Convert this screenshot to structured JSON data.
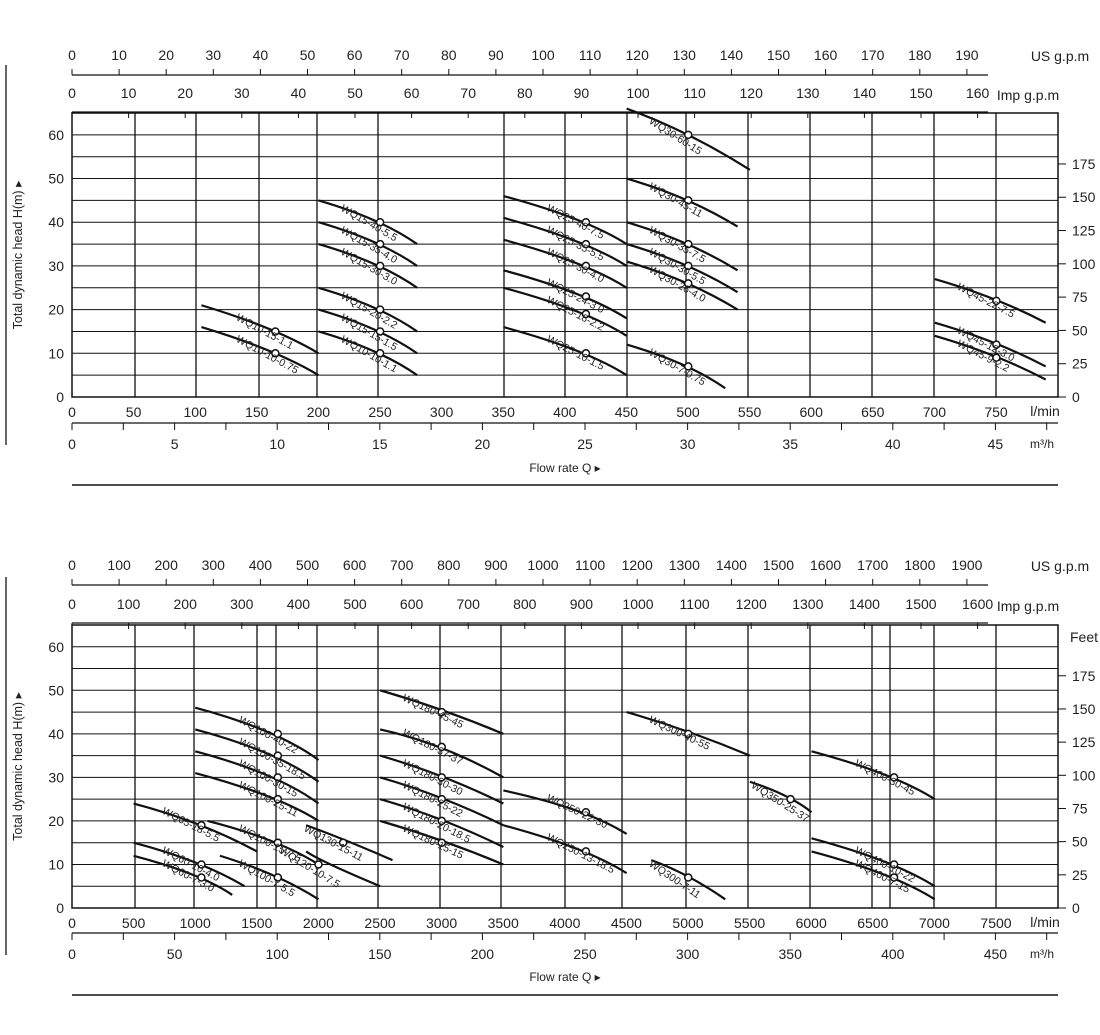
{
  "chart_data": [
    {
      "type": "line",
      "xlabel": "Flow rate Q ▸",
      "ylabel": "Total dynamic head H(m) ▸",
      "top_axis_1": {
        "unit": "US g.p.m",
        "ticks": [
          "0",
          "10",
          "20",
          "30",
          "40",
          "50",
          "60",
          "70",
          "80",
          "90",
          "100",
          "110",
          "120",
          "130",
          "140",
          "150",
          "160",
          "170",
          "180",
          "190"
        ]
      },
      "top_axis_2": {
        "unit": "Imp g.p.m",
        "ticks": [
          "0",
          "10",
          "20",
          "30",
          "40",
          "50",
          "60",
          "70",
          "80",
          "90",
          "100",
          "110",
          "120",
          "130",
          "140",
          "150",
          "160"
        ]
      },
      "bottom_axis_1": {
        "unit": "l/min",
        "ticks": [
          "0",
          "50",
          "100",
          "150",
          "200",
          "250",
          "300",
          "350",
          "400",
          "450",
          "500",
          "550",
          "600",
          "650",
          "700",
          "750"
        ]
      },
      "bottom_axis_2": {
        "unit": "m³/h",
        "ticks": [
          "0",
          "5",
          "10",
          "15",
          "20",
          "25",
          "30",
          "35",
          "40",
          "45"
        ]
      },
      "left_ticks": [
        "0",
        "10",
        "20",
        "30",
        "40",
        "50",
        "60"
      ],
      "right_axis_label": "",
      "right_ticks": [
        "0",
        "25",
        "50",
        "75",
        "100",
        "125",
        "150",
        "175"
      ],
      "xlim_lmin": [
        0,
        800
      ],
      "ylim": [
        0,
        65
      ],
      "right_feet_per_m": 3.2808,
      "series": [
        {
          "name": "WQ10-15-1.1",
          "x": [
            105,
            165,
            200
          ],
          "y": [
            21,
            15,
            10
          ]
        },
        {
          "name": "WQ10-10-0.75",
          "x": [
            105,
            165,
            200
          ],
          "y": [
            16,
            10,
            5
          ]
        },
        {
          "name": "WQ15-40-5.5",
          "x": [
            200,
            250,
            280
          ],
          "y": [
            45,
            40,
            35
          ]
        },
        {
          "name": "WQ15-35-4.0",
          "x": [
            200,
            250,
            280
          ],
          "y": [
            40,
            35,
            30
          ]
        },
        {
          "name": "WQ15-30-3.0",
          "x": [
            200,
            250,
            280
          ],
          "y": [
            35,
            30,
            25
          ]
        },
        {
          "name": "WQ15-20-2.2",
          "x": [
            200,
            250,
            280
          ],
          "y": [
            25,
            20,
            15
          ]
        },
        {
          "name": "WQ15-15-1.5",
          "x": [
            200,
            250,
            280
          ],
          "y": [
            20,
            15,
            10
          ]
        },
        {
          "name": "WQ10-10-1.1",
          "x": [
            200,
            250,
            280
          ],
          "y": [
            15,
            10,
            5
          ]
        },
        {
          "name": "WQ25-40-7.5",
          "x": [
            350,
            417,
            450
          ],
          "y": [
            46,
            40,
            35
          ]
        },
        {
          "name": "WQ25-35-5.5",
          "x": [
            350,
            417,
            450
          ],
          "y": [
            41,
            35,
            30
          ]
        },
        {
          "name": "WQ25-30-4.0",
          "x": [
            350,
            417,
            450
          ],
          "y": [
            36,
            30,
            25
          ]
        },
        {
          "name": "WQ25-24-3.0",
          "x": [
            350,
            417,
            450
          ],
          "y": [
            29,
            23,
            18
          ]
        },
        {
          "name": "WQ25-18-2.2",
          "x": [
            350,
            417,
            450
          ],
          "y": [
            25,
            19,
            14
          ]
        },
        {
          "name": "WQ25-10-1.5",
          "x": [
            350,
            417,
            450
          ],
          "y": [
            16,
            10,
            5
          ]
        },
        {
          "name": "WQ30-60-15",
          "x": [
            450,
            500,
            550
          ],
          "y": [
            66,
            60,
            52
          ]
        },
        {
          "name": "WQ30-45-11",
          "x": [
            450,
            500,
            540
          ],
          "y": [
            50,
            45,
            39
          ]
        },
        {
          "name": "WQ30-35-7.5",
          "x": [
            450,
            500,
            540
          ],
          "y": [
            40,
            35,
            29
          ]
        },
        {
          "name": "WQ30-30-5.5",
          "x": [
            450,
            500,
            540
          ],
          "y": [
            35,
            30,
            24
          ]
        },
        {
          "name": "WQ30-26-4.0",
          "x": [
            450,
            500,
            540
          ],
          "y": [
            31,
            26,
            20
          ]
        },
        {
          "name": "WQ30-7-0.75",
          "x": [
            450,
            500,
            530
          ],
          "y": [
            12,
            7,
            2
          ]
        },
        {
          "name": "WQ45-22-7.5",
          "x": [
            700,
            750,
            790
          ],
          "y": [
            27,
            22,
            17
          ]
        },
        {
          "name": "WQ45-12-3.0",
          "x": [
            700,
            750,
            790
          ],
          "y": [
            17,
            12,
            7
          ]
        },
        {
          "name": "WQ45-9-2.2",
          "x": [
            700,
            750,
            790
          ],
          "y": [
            14,
            9,
            4
          ]
        }
      ]
    },
    {
      "type": "line",
      "xlabel": "Flow rate Q ▸",
      "ylabel": "Total dynamic head H(m) ▸",
      "top_axis_1": {
        "unit": "US g.p.m",
        "ticks": [
          "0",
          "100",
          "200",
          "300",
          "400",
          "500",
          "600",
          "700",
          "800",
          "900",
          "1000",
          "1100",
          "1200",
          "1300",
          "1400",
          "1500",
          "1600",
          "1700",
          "1800",
          "1900"
        ]
      },
      "top_axis_2": {
        "unit": "Imp g.p.m",
        "ticks": [
          "0",
          "100",
          "200",
          "300",
          "400",
          "500",
          "600",
          "700",
          "800",
          "900",
          "1000",
          "1100",
          "1200",
          "1300",
          "1400",
          "1500",
          "1600"
        ]
      },
      "bottom_axis_1": {
        "unit": "l/min",
        "ticks": [
          "0",
          "500",
          "1000",
          "1500",
          "2000",
          "2500",
          "3000",
          "3500",
          "4000",
          "4500",
          "5000",
          "5500",
          "6000",
          "6500",
          "7000",
          "7500"
        ]
      },
      "bottom_axis_2": {
        "unit": "m³/h",
        "ticks": [
          "0",
          "50",
          "100",
          "150",
          "200",
          "250",
          "300",
          "350",
          "400",
          "450"
        ]
      },
      "left_ticks": [
        "0",
        "10",
        "20",
        "30",
        "40",
        "50",
        "60"
      ],
      "right_axis_label": "Feet",
      "right_ticks": [
        "0",
        "25",
        "50",
        "75",
        "100",
        "125",
        "150",
        "175"
      ],
      "xlim_lmin": [
        0,
        8000
      ],
      "ylim": [
        0,
        65
      ],
      "right_feet_per_m": 3.2808,
      "series": [
        {
          "name": "WQ65-18-5.5",
          "x": [
            500,
            1050,
            1500
          ],
          "y": [
            24,
            19,
            13
          ]
        },
        {
          "name": "WQ60-10-4.0",
          "x": [
            500,
            1050,
            1400
          ],
          "y": [
            15,
            10,
            5
          ]
        },
        {
          "name": "WQ60-7-3.0",
          "x": [
            500,
            1050,
            1300
          ],
          "y": [
            12,
            7,
            3
          ]
        },
        {
          "name": "WQ100-40-22",
          "x": [
            1000,
            1670,
            2000
          ],
          "y": [
            46,
            40,
            34
          ]
        },
        {
          "name": "WQ100-35-18.5",
          "x": [
            1000,
            1670,
            2000
          ],
          "y": [
            41,
            35,
            29
          ]
        },
        {
          "name": "WQ100-30-15",
          "x": [
            1000,
            1670,
            2000
          ],
          "y": [
            36,
            30,
            24
          ]
        },
        {
          "name": "WQ100-25-11",
          "x": [
            1000,
            1670,
            2000
          ],
          "y": [
            31,
            25,
            20
          ]
        },
        {
          "name": "WQ100-15-7.5",
          "x": [
            1100,
            1670,
            2000
          ],
          "y": [
            20,
            15,
            10
          ]
        },
        {
          "name": "WQ100-7-5.5",
          "x": [
            1200,
            1670,
            2000
          ],
          "y": [
            12,
            7,
            2
          ]
        },
        {
          "name": "WQ130-15-11",
          "x": [
            1900,
            2200,
            2600
          ],
          "y": [
            19,
            15,
            11
          ]
        },
        {
          "name": "WQ120-10-7.5",
          "x": [
            1900,
            2000,
            2500
          ],
          "y": [
            13,
            10,
            5
          ]
        },
        {
          "name": "WQ180-45-45",
          "x": [
            2500,
            3000,
            3500
          ],
          "y": [
            50,
            45,
            40
          ]
        },
        {
          "name": "WQ180-37-37",
          "x": [
            2500,
            3000,
            3500
          ],
          "y": [
            41,
            37,
            30
          ]
        },
        {
          "name": "WQ180-30-30",
          "x": [
            2500,
            3000,
            3500
          ],
          "y": [
            35,
            30,
            24
          ]
        },
        {
          "name": "WQ180-25-22",
          "x": [
            2500,
            3000,
            3500
          ],
          "y": [
            30,
            25,
            19
          ]
        },
        {
          "name": "WQ180-20-18.5",
          "x": [
            2500,
            3000,
            3500
          ],
          "y": [
            25,
            20,
            14
          ]
        },
        {
          "name": "WQ180-15-15",
          "x": [
            2500,
            3000,
            3500
          ],
          "y": [
            20,
            15,
            10
          ]
        },
        {
          "name": "WQ250-22-30",
          "x": [
            3500,
            4170,
            4500
          ],
          "y": [
            27,
            22,
            17
          ]
        },
        {
          "name": "WQ250-13-18.5",
          "x": [
            3500,
            4170,
            4500
          ],
          "y": [
            19,
            13,
            8
          ]
        },
        {
          "name": "WQ300-40-55",
          "x": [
            4500,
            5000,
            5500
          ],
          "y": [
            45,
            40,
            35
          ]
        },
        {
          "name": "WQ300-7-11",
          "x": [
            4700,
            5000,
            5300
          ],
          "y": [
            11,
            7,
            2
          ]
        },
        {
          "name": "WQ350-25-37",
          "x": [
            5500,
            5830,
            6000
          ],
          "y": [
            29,
            25,
            22
          ]
        },
        {
          "name": "WQ400-30-45",
          "x": [
            6000,
            6670,
            7000
          ],
          "y": [
            36,
            30,
            25
          ]
        },
        {
          "name": "WQ400-10-22",
          "x": [
            6000,
            6670,
            7000
          ],
          "y": [
            16,
            10,
            5
          ]
        },
        {
          "name": "WQ400-7-15",
          "x": [
            6000,
            6670,
            7000
          ],
          "y": [
            13,
            7,
            2
          ]
        }
      ]
    }
  ]
}
